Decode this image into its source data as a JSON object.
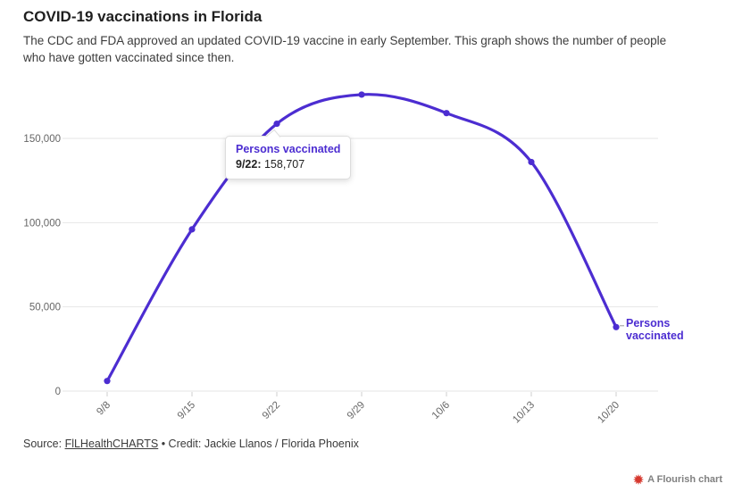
{
  "header": {
    "title": "COVID-19 vaccinations in Florida",
    "subtitle": "The CDC and FDA approved an updated COVID-19 vaccine in early September. This graph shows the number of people who have gotten vaccinated since then."
  },
  "chart_data": {
    "type": "line",
    "series": [
      {
        "name": "Persons vaccinated",
        "values": [
          6000,
          96000,
          158707,
          176000,
          165000,
          136000,
          38000
        ]
      }
    ],
    "categories": [
      "9/8",
      "9/15",
      "9/22",
      "9/29",
      "10/6",
      "10/13",
      "10/20"
    ],
    "yticks": [
      0,
      50000,
      100000,
      150000
    ],
    "ylim": [
      0,
      185000
    ],
    "xlabel": "",
    "ylabel": "",
    "grid": true,
    "legend_position": "end-of-line",
    "line_color": "#4c2dd1",
    "grid_color": "#e6e6e6",
    "tick_color": "#cfcfcf"
  },
  "tooltip": {
    "title": "Persons vaccinated",
    "label": "9/22:",
    "value": "158,707"
  },
  "end_label": {
    "line1": "Persons",
    "line2": "vaccinated"
  },
  "footer": {
    "source_prefix": "Source: ",
    "source_link": "FlLHealthCHARTS",
    "credit": " • Credit: Jackie Llanos / Florida Phoenix"
  },
  "attribution": {
    "label": "A Flourish chart",
    "icon_color": "#d6382e"
  }
}
